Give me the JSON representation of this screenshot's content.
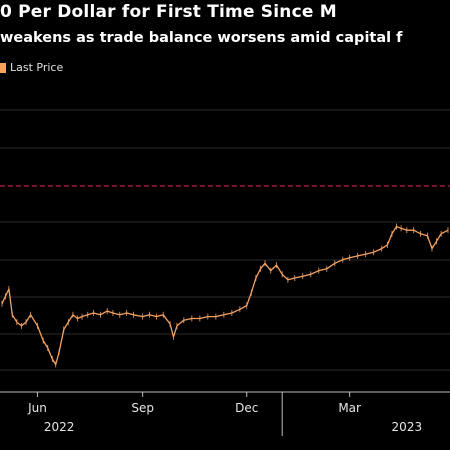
{
  "header": {
    "title": "0 Per Dollar for First Time Since M",
    "subtitle": "weakens as trade balance worsens amid capital f"
  },
  "legend": {
    "label": "Last Price"
  },
  "colors": {
    "background": "#000000",
    "series": "#f4a261",
    "reference_line": "#c2185b",
    "grid": "#2b2b2b",
    "text": "#e6e6e6"
  },
  "chart_data": {
    "type": "line",
    "series": [
      {
        "name": "Last Price",
        "points": [
          [
            "2022-05-01",
            0.36
          ],
          [
            "2022-05-04",
            0.4
          ],
          [
            "2022-05-07",
            0.44
          ],
          [
            "2022-05-10",
            0.3
          ],
          [
            "2022-05-14",
            0.26
          ],
          [
            "2022-05-18",
            0.24
          ],
          [
            "2022-05-22",
            0.26
          ],
          [
            "2022-05-26",
            0.3
          ],
          [
            "2022-06-01",
            0.24
          ],
          [
            "2022-06-06",
            0.16
          ],
          [
            "2022-06-10",
            0.12
          ],
          [
            "2022-06-14",
            0.06
          ],
          [
            "2022-06-17",
            0.03
          ],
          [
            "2022-06-20",
            0.1
          ],
          [
            "2022-06-24",
            0.22
          ],
          [
            "2022-06-28",
            0.26
          ],
          [
            "2022-07-02",
            0.3
          ],
          [
            "2022-07-06",
            0.28
          ],
          [
            "2022-07-10",
            0.29
          ],
          [
            "2022-07-15",
            0.3
          ],
          [
            "2022-07-20",
            0.31
          ],
          [
            "2022-07-26",
            0.3
          ],
          [
            "2022-08-01",
            0.32
          ],
          [
            "2022-08-06",
            0.31
          ],
          [
            "2022-08-12",
            0.3
          ],
          [
            "2022-08-18",
            0.31
          ],
          [
            "2022-08-24",
            0.3
          ],
          [
            "2022-09-01",
            0.29
          ],
          [
            "2022-09-07",
            0.3
          ],
          [
            "2022-09-13",
            0.29
          ],
          [
            "2022-09-19",
            0.3
          ],
          [
            "2022-09-25",
            0.25
          ],
          [
            "2022-09-28",
            0.18
          ],
          [
            "2022-10-01",
            0.24
          ],
          [
            "2022-10-07",
            0.27
          ],
          [
            "2022-10-14",
            0.28
          ],
          [
            "2022-10-21",
            0.28
          ],
          [
            "2022-10-28",
            0.29
          ],
          [
            "2022-11-04",
            0.29
          ],
          [
            "2022-11-11",
            0.3
          ],
          [
            "2022-11-18",
            0.31
          ],
          [
            "2022-11-25",
            0.33
          ],
          [
            "2022-12-01",
            0.35
          ],
          [
            "2022-12-05",
            0.42
          ],
          [
            "2022-12-09",
            0.5
          ],
          [
            "2022-12-13",
            0.55
          ],
          [
            "2022-12-17",
            0.58
          ],
          [
            "2022-12-22",
            0.54
          ],
          [
            "2022-12-27",
            0.57
          ],
          [
            "2023-01-01",
            0.52
          ],
          [
            "2023-01-06",
            0.49
          ],
          [
            "2023-01-12",
            0.5
          ],
          [
            "2023-01-19",
            0.51
          ],
          [
            "2023-01-26",
            0.52
          ],
          [
            "2023-02-02",
            0.54
          ],
          [
            "2023-02-09",
            0.55
          ],
          [
            "2023-02-16",
            0.58
          ],
          [
            "2023-02-23",
            0.6
          ],
          [
            "2023-03-01",
            0.61
          ],
          [
            "2023-03-08",
            0.62
          ],
          [
            "2023-03-15",
            0.63
          ],
          [
            "2023-03-22",
            0.64
          ],
          [
            "2023-03-29",
            0.66
          ],
          [
            "2023-04-03",
            0.68
          ],
          [
            "2023-04-07",
            0.74
          ],
          [
            "2023-04-11",
            0.78
          ],
          [
            "2023-04-15",
            0.77
          ],
          [
            "2023-04-20",
            0.76
          ],
          [
            "2023-04-26",
            0.76
          ],
          [
            "2023-05-02",
            0.74
          ],
          [
            "2023-05-08",
            0.73
          ],
          [
            "2023-05-12",
            0.66
          ],
          [
            "2023-05-16",
            0.7
          ],
          [
            "2023-05-20",
            0.74
          ],
          [
            "2023-05-26",
            0.76
          ]
        ]
      }
    ],
    "reference_line": {
      "y": 1.0
    },
    "x_range": [
      "2022-05-01",
      "2023-05-26"
    ],
    "y_range": [
      0,
      1
    ],
    "grid": true,
    "x_ticks": [
      {
        "date": "2022-06-01",
        "label": "Jun"
      },
      {
        "date": "2022-09-01",
        "label": "Sep"
      },
      {
        "date": "2022-12-01",
        "label": "Dec"
      },
      {
        "date": "2023-03-01",
        "label": "Mar"
      }
    ],
    "year_labels": [
      {
        "date": "2022-06-20",
        "label": "2022"
      },
      {
        "date": "2023-04-20",
        "label": "2023"
      }
    ]
  }
}
